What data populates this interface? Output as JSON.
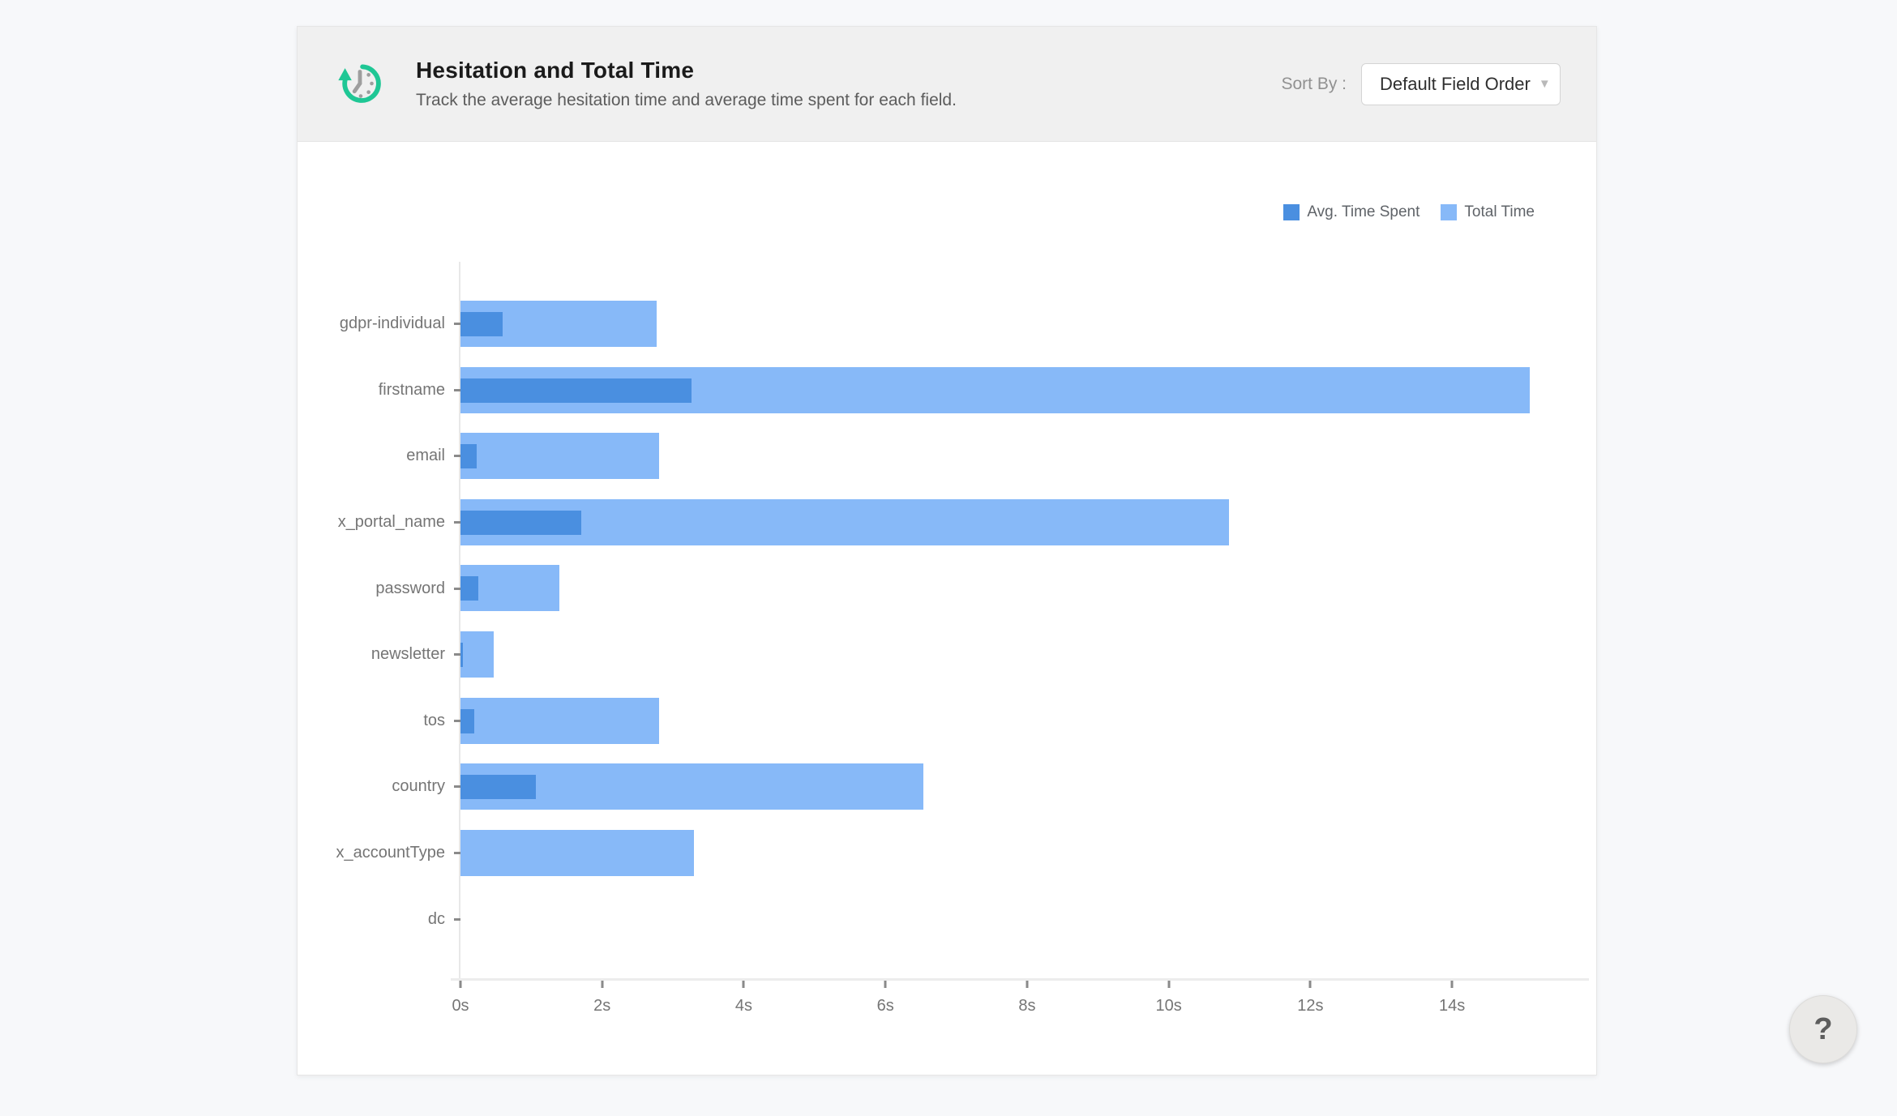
{
  "header": {
    "title": "Hesitation and Total Time",
    "subtitle": "Track the average hesitation time and average time spent for each field.",
    "sort_by_label": "Sort By :",
    "sort_by_value": "Default Field Order",
    "icon": "history-clock-icon",
    "icon_color": "#1fc795",
    "icon_hands_color": "#9e9e9e"
  },
  "help_button": {
    "label": "?"
  },
  "chart_data": {
    "type": "bar",
    "orientation": "horizontal",
    "title": "Hesitation and Total Time",
    "categories": [
      "gdpr-individual",
      "firstname",
      "email",
      "x_portal_name",
      "password",
      "newsletter",
      "tos",
      "country",
      "x_accountType",
      "dc"
    ],
    "series": [
      {
        "name": "Avg. Time Spent",
        "color": "#4a8fe0",
        "values": [
          0.59,
          3.26,
          0.23,
          1.7,
          0.25,
          0.04,
          0.19,
          1.06,
          0,
          0
        ]
      },
      {
        "name": "Total Time",
        "color": "#87b9f8",
        "values": [
          2.77,
          15.1,
          2.8,
          10.85,
          1.4,
          0.47,
          2.8,
          6.54,
          3.3,
          0
        ]
      }
    ],
    "x_unit": "s",
    "x_ticks": [
      "0s",
      "2s",
      "4s",
      "6s",
      "8s",
      "10s",
      "12s",
      "14s"
    ],
    "x_tick_values": [
      0,
      2,
      4,
      6,
      8,
      10,
      12,
      14
    ],
    "xlim": [
      0,
      15.2
    ],
    "legend_position": "top-right",
    "grid": false
  }
}
